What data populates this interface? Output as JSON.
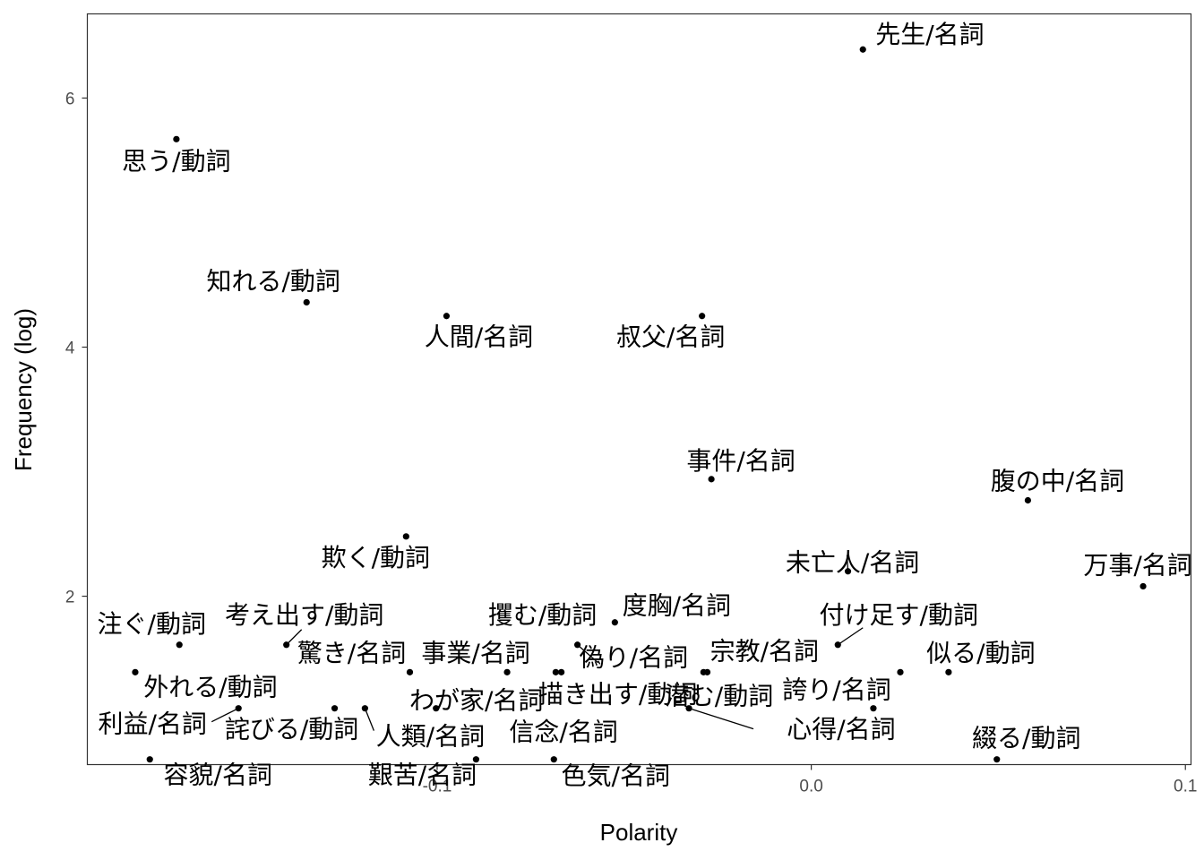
{
  "chart_data": {
    "type": "scatter",
    "xlabel": "Polarity",
    "ylabel": "Frequency (log)",
    "xlim": [
      -0.1935,
      0.1015
    ],
    "ylim": [
      0.6481,
      6.6758
    ],
    "x_ticks": [
      -0.1,
      0.0,
      0.1
    ],
    "x_tick_labels": [
      "-0.1",
      "0.0",
      "0.1"
    ],
    "y_ticks": [
      2,
      4,
      6
    ],
    "y_tick_labels": [
      "2",
      "4",
      "6"
    ],
    "grid": false,
    "colors": {
      "point": "#000000",
      "panel_border": "#333333",
      "tick_text": "#4d4d4d"
    },
    "points": [
      {
        "label": "先生/名詞",
        "x": 0.0138,
        "y": 6.39
      },
      {
        "label": "思う/動詞",
        "x": -0.1697,
        "y": 5.67
      },
      {
        "label": "知れる/動詞",
        "x": -0.1349,
        "y": 4.36
      },
      {
        "label": "人間/名詞",
        "x": -0.0975,
        "y": 4.25
      },
      {
        "label": "叔父/名詞",
        "x": -0.0292,
        "y": 4.25
      },
      {
        "label": "事件/名詞",
        "x": -0.0267,
        "y": 2.94
      },
      {
        "label": "腹の中/名詞",
        "x": 0.0579,
        "y": 2.77
      },
      {
        "label": "欺く/動詞",
        "x": -0.1083,
        "y": 2.48
      },
      {
        "label": "未亡人/名詞",
        "x": 0.0098,
        "y": 2.2
      },
      {
        "label": "万事/名詞",
        "x": 0.0887,
        "y": 2.08
      },
      {
        "label": "度胸/名詞",
        "x": -0.0525,
        "y": 1.79
      },
      {
        "label": "注ぐ/動詞",
        "x": -0.1689,
        "y": 1.61
      },
      {
        "label": "考え出す/動詞",
        "x": -0.1403,
        "y": 1.61
      },
      {
        "label": "攫む/動詞",
        "x": -0.0625,
        "y": 1.61
      },
      {
        "label": "付け足す/動詞",
        "x": 0.0071,
        "y": 1.61
      },
      {
        "label": "驚き/名詞",
        "x": -0.1073,
        "y": 1.39
      },
      {
        "label": "事業/名詞",
        "x": -0.0813,
        "y": 1.39
      },
      {
        "label": "偽り/名詞",
        "x": -0.0683,
        "y": 1.39
      },
      {
        "label": "描き出す/動詞",
        "x": -0.0668,
        "y": 1.39
      },
      {
        "label": "宗教/名詞",
        "x": -0.0288,
        "y": 1.39
      },
      {
        "label": "潜む/動詞",
        "x": -0.0278,
        "y": 1.39
      },
      {
        "label": "誇り/名詞",
        "x": 0.0238,
        "y": 1.39
      },
      {
        "label": "似る/動詞",
        "x": 0.0367,
        "y": 1.39
      },
      {
        "label": "外れる/動詞",
        "x": -0.1807,
        "y": 1.39
      },
      {
        "label": "利益/名詞",
        "x": -0.1531,
        "y": 1.1
      },
      {
        "label": "詫びる/動詞",
        "x": -0.1274,
        "y": 1.1
      },
      {
        "label": "人類/名詞",
        "x": -0.1193,
        "y": 1.1
      },
      {
        "label": "わが家/名詞",
        "x": -0.1003,
        "y": 1.1
      },
      {
        "label": "信念/名詞",
        "x": -0.0327,
        "y": 1.1
      },
      {
        "label": "心得/名詞",
        "x": 0.0166,
        "y": 1.1
      },
      {
        "label": "容貌/名詞",
        "x": -0.1768,
        "y": 0.69
      },
      {
        "label": "艱苦/名詞",
        "x": -0.0896,
        "y": 0.69
      },
      {
        "label": "色気/名詞",
        "x": -0.0688,
        "y": 0.69
      },
      {
        "label": "綴る/動詞",
        "x": 0.0496,
        "y": 0.69
      }
    ]
  }
}
